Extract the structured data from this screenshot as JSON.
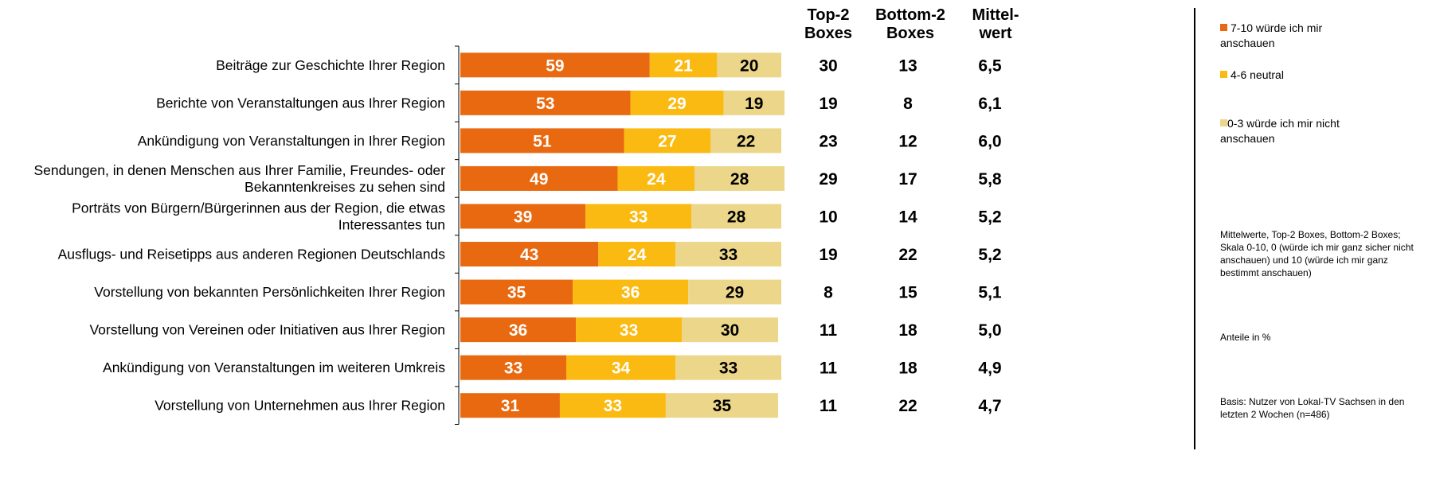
{
  "chart_data": {
    "type": "bar",
    "orientation": "horizontal",
    "stacked": true,
    "xlim": [
      0,
      100
    ],
    "categories": [
      "Beiträge zur Geschichte Ihrer Region",
      "Berichte von Veranstaltungen aus Ihrer Region",
      "Ankündigung von Veranstaltungen in Ihrer Region",
      "Sendungen, in denen Menschen aus Ihrer Familie, Freundes- oder Bekanntenkreises zu sehen sind",
      "Porträts von Bürgern/Bürgerinnen aus der Region, die etwas Interessantes tun",
      "Ausflugs- und Reisetipps aus anderen Regionen Deutschlands",
      "Vorstellung von bekannten Persönlichkeiten Ihrer Region",
      "Vorstellung von Vereinen oder Initiativen aus Ihrer Region",
      "Ankündigung von Veranstaltungen im weiteren Umkreis",
      "Vorstellung von Unternehmen aus Ihrer Region"
    ],
    "category_lines": [
      [
        "Beiträge zur Geschichte Ihrer Region"
      ],
      [
        "Berichte von Veranstaltungen aus Ihrer Region"
      ],
      [
        "Ankündigung von Veranstaltungen in Ihrer Region"
      ],
      [
        "Sendungen, in denen Menschen aus Ihrer Familie, Freundes- oder",
        "Bekanntenkreises zu sehen sind"
      ],
      [
        "Porträts von Bürgern/Bürgerinnen aus der Region, die etwas",
        "Interessantes tun"
      ],
      [
        "Ausflugs- und Reisetipps aus anderen Regionen Deutschlands"
      ],
      [
        "Vorstellung von bekannten Persönlichkeiten Ihrer Region"
      ],
      [
        "Vorstellung von Vereinen oder Initiativen aus Ihrer Region"
      ],
      [
        "Ankündigung von Veranstaltungen im weiteren Umkreis"
      ],
      [
        "Vorstellung von Unternehmen aus Ihrer Region"
      ]
    ],
    "series": [
      {
        "name": "7-10 würde ich mir anschauen",
        "color": "#E8690F",
        "label_color": "#FFFFFF",
        "values": [
          59,
          53,
          51,
          49,
          39,
          43,
          35,
          36,
          33,
          31
        ]
      },
      {
        "name": "4-6 neutral",
        "color": "#FBBA11",
        "label_color": "#FFFFFF",
        "values": [
          21,
          29,
          27,
          24,
          33,
          24,
          36,
          33,
          34,
          33
        ]
      },
      {
        "name": "0-3 würde ich mir nicht anschauen",
        "color": "#EBD68A",
        "label_color": "#000000",
        "values": [
          20,
          19,
          22,
          28,
          28,
          33,
          29,
          30,
          33,
          35
        ]
      }
    ],
    "table_columns": [
      {
        "header": [
          "Top-2",
          "Boxes"
        ],
        "values": [
          "30",
          "19",
          "23",
          "29",
          "10",
          "19",
          "8",
          "11",
          "11",
          "11"
        ]
      },
      {
        "header": [
          "Bottom-2",
          "Boxes"
        ],
        "values": [
          "13",
          "8",
          "12",
          "17",
          "14",
          "22",
          "15",
          "18",
          "18",
          "22"
        ]
      },
      {
        "header": [
          "Mittel-",
          "wert"
        ],
        "values": [
          "6,5",
          "6,1",
          "6,0",
          "5,8",
          "5,2",
          "5,2",
          "5,1",
          "5,0",
          "4,9",
          "4,7"
        ]
      }
    ]
  },
  "legend": {
    "items": [
      {
        "lines": [
          "7-10 würde ich mir",
          "anschauen"
        ],
        "color": "#E8690F"
      },
      {
        "lines": [
          "4-6 neutral"
        ],
        "color": "#FBBA11"
      },
      {
        "lines": [
          "0-3 würde ich mir nicht",
          "anschauen"
        ],
        "color": "#EBD68A"
      }
    ]
  },
  "notes": {
    "method": "Mittelwerte, Top-2 Boxes, Bottom-2 Boxes; Skala 0-10, 0 (würde ich mir ganz sicher nicht anschauen) und 10 (würde ich mir ganz bestimmt anschauen)",
    "unit": "Anteile in %",
    "basis": "Basis: Nutzer von Lokal-TV Sachsen in den letzten 2 Wochen (n=486)"
  }
}
